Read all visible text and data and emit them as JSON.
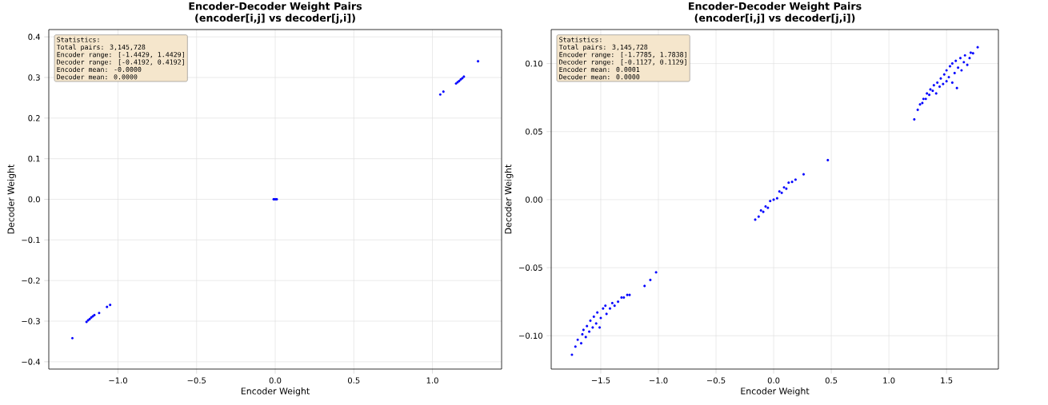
{
  "chart_data": [
    {
      "type": "scatter",
      "title": "Encoder-Decoder Weight Pairs",
      "subtitle": "(encoder[i,j] vs decoder[j,i])",
      "xlabel": "Encoder Weight",
      "ylabel": "Decoder Weight",
      "annotations": [
        "Statistics:",
        "Total pairs: 3,145,728",
        "Encoder range: [-1.4429, 1.4429]",
        "Decoder range: [-0.4192, 0.4192]",
        "Encoder mean: -0.0000",
        "Decoder mean: 0.0000"
      ],
      "series": [
        {
          "color": "#0000ff",
          "x": [
            -1.29,
            -1.2,
            -1.19,
            -1.18,
            -1.17,
            -1.16,
            -1.15,
            -1.12,
            -1.07,
            -1.05,
            -0.01,
            0.0,
            0.01,
            1.05,
            1.07,
            1.15,
            1.16,
            1.17,
            1.18,
            1.19,
            1.2,
            1.29
          ],
          "values": [
            -0.342,
            -0.302,
            -0.298,
            -0.295,
            -0.291,
            -0.288,
            -0.285,
            -0.28,
            -0.265,
            -0.26,
            0.0,
            0.0,
            0.0,
            0.258,
            0.265,
            0.285,
            0.288,
            0.291,
            0.295,
            0.298,
            0.302,
            0.34
          ]
        }
      ],
      "xlim": [
        -1.44,
        1.44
      ],
      "ylim": [
        -0.418,
        0.418
      ],
      "xticks": [
        {
          "value": -1.0,
          "label": "−1.0"
        },
        {
          "value": -0.5,
          "label": "−0.5"
        },
        {
          "value": 0.0,
          "label": "0.0"
        },
        {
          "value": 0.5,
          "label": "0.5"
        },
        {
          "value": 1.0,
          "label": "1.0"
        }
      ],
      "yticks": [
        {
          "value": -0.4,
          "label": "−0.4"
        },
        {
          "value": -0.3,
          "label": "−0.3"
        },
        {
          "value": -0.2,
          "label": "−0.2"
        },
        {
          "value": -0.1,
          "label": "−0.1"
        },
        {
          "value": 0.0,
          "label": "0.0"
        },
        {
          "value": 0.1,
          "label": "0.1"
        },
        {
          "value": 0.2,
          "label": "0.2"
        },
        {
          "value": 0.3,
          "label": "0.3"
        },
        {
          "value": 0.4,
          "label": "0.4"
        }
      ],
      "grid": true,
      "marker": "circle"
    },
    {
      "type": "scatter",
      "title": "Encoder-Decoder Weight Pairs",
      "subtitle": "(encoder[i,j] vs decoder[j,i])",
      "xlabel": "Encoder Weight",
      "ylabel": "Decoder Weight",
      "annotations": [
        "Statistics:",
        "Total pairs: 3,145,728",
        "Encoder range: [-1.7785, 1.7838]",
        "Decoder range: [-0.1127, 0.1129]",
        "Encoder mean: 0.0001",
        "Decoder mean: 0.0000"
      ],
      "series": [
        {
          "color": "#0000ff",
          "x": [
            -1.75,
            -1.72,
            -1.7,
            -1.67,
            -1.66,
            -1.65,
            -1.63,
            -1.62,
            -1.6,
            -1.59,
            -1.57,
            -1.56,
            -1.54,
            -1.53,
            -1.51,
            -1.5,
            -1.48,
            -1.46,
            -1.45,
            -1.42,
            -1.4,
            -1.38,
            -1.35,
            -1.32,
            -1.3,
            -1.27,
            -1.25,
            -1.12,
            -1.07,
            -1.02,
            -0.16,
            -0.13,
            -0.11,
            -0.09,
            -0.07,
            -0.05,
            -0.03,
            0.0,
            0.03,
            0.05,
            0.07,
            0.09,
            0.11,
            0.13,
            0.16,
            0.19,
            0.26,
            0.47,
            1.22,
            1.25,
            1.27,
            1.29,
            1.3,
            1.32,
            1.33,
            1.35,
            1.36,
            1.38,
            1.39,
            1.41,
            1.42,
            1.44,
            1.45,
            1.47,
            1.48,
            1.5,
            1.5,
            1.52,
            1.53,
            1.55,
            1.55,
            1.57,
            1.58,
            1.59,
            1.6,
            1.62,
            1.63,
            1.65,
            1.66,
            1.68,
            1.7,
            1.71,
            1.73,
            1.77
          ],
          "values": [
            -0.114,
            -0.108,
            -0.103,
            -0.1056,
            -0.099,
            -0.0957,
            -0.101,
            -0.093,
            -0.097,
            -0.089,
            -0.094,
            -0.086,
            -0.091,
            -0.083,
            -0.094,
            -0.087,
            -0.08,
            -0.078,
            -0.084,
            -0.08,
            -0.076,
            -0.078,
            -0.075,
            -0.072,
            -0.072,
            -0.07,
            -0.07,
            -0.0635,
            -0.059,
            -0.0534,
            -0.0147,
            -0.0125,
            -0.008,
            -0.009,
            -0.005,
            -0.006,
            -0.001,
            0.0,
            0.001,
            0.006,
            0.005,
            0.009,
            0.008,
            0.0125,
            0.013,
            0.0147,
            0.0186,
            0.029,
            0.059,
            0.066,
            0.07,
            0.071,
            0.074,
            0.074,
            0.078,
            0.077,
            0.081,
            0.08,
            0.084,
            0.078,
            0.086,
            0.083,
            0.089,
            0.085,
            0.092,
            0.087,
            0.095,
            0.09,
            0.098,
            0.086,
            0.1,
            0.093,
            0.102,
            0.082,
            0.097,
            0.104,
            0.095,
            0.101,
            0.106,
            0.099,
            0.104,
            0.108,
            0.1075,
            0.112
          ]
        }
      ],
      "xlim": [
        -1.93,
        1.95
      ],
      "ylim": [
        -0.1245,
        0.125
      ],
      "xticks": [
        {
          "value": -1.5,
          "label": "−1.5"
        },
        {
          "value": -1.0,
          "label": "−1.0"
        },
        {
          "value": -0.5,
          "label": "−0.5"
        },
        {
          "value": 0.0,
          "label": "0.0"
        },
        {
          "value": 0.5,
          "label": "0.5"
        },
        {
          "value": 1.0,
          "label": "1.0"
        },
        {
          "value": 1.5,
          "label": "1.5"
        }
      ],
      "yticks": [
        {
          "value": -0.1,
          "label": "−0.10"
        },
        {
          "value": -0.05,
          "label": "−0.05"
        },
        {
          "value": 0.0,
          "label": "0.00"
        },
        {
          "value": 0.05,
          "label": "0.05"
        },
        {
          "value": 0.1,
          "label": "0.10"
        }
      ],
      "grid": true,
      "marker": "circle"
    }
  ]
}
